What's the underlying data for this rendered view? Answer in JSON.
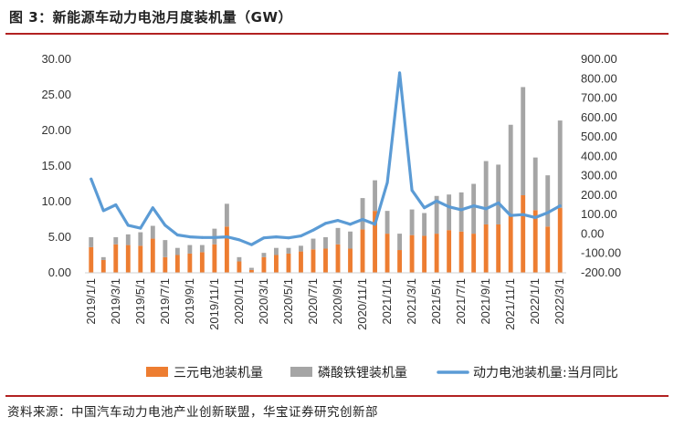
{
  "figure": {
    "title": "图 3：新能源车动力电池月度装机量（GW）",
    "source": "资料来源：中国汽车动力电池产业创新联盟，华宝证券研究创新部"
  },
  "colors": {
    "ternary": "#ed7d31",
    "lfp": "#a5a5a5",
    "yoy": "#5b9bd5",
    "accent": "#b22222"
  },
  "chart_data": {
    "type": "bar",
    "categories": [
      "2019/1/1",
      "2019/2/1",
      "2019/3/1",
      "2019/4/1",
      "2019/5/1",
      "2019/6/1",
      "2019/7/1",
      "2019/8/1",
      "2019/9/1",
      "2019/10/1",
      "2019/11/1",
      "2019/12/1",
      "2020/1/1",
      "2020/2/1",
      "2020/3/1",
      "2020/4/1",
      "2020/5/1",
      "2020/6/1",
      "2020/7/1",
      "2020/8/1",
      "2020/9/1",
      "2020/10/1",
      "2020/11/1",
      "2020/12/1",
      "2021/1/1",
      "2021/2/1",
      "2021/3/1",
      "2021/4/1",
      "2021/5/1",
      "2021/6/1",
      "2021/7/1",
      "2021/8/1",
      "2021/9/1",
      "2021/10/1",
      "2021/11/1",
      "2021/12/1",
      "2022/1/1",
      "2022/2/1",
      "2022/3/1"
    ],
    "x_tick_labels": [
      "2019/1/1",
      "2019/3/1",
      "2019/5/1",
      "2019/7/1",
      "2019/9/1",
      "2019/11/1",
      "2020/1/1",
      "2020/3/1",
      "2020/5/1",
      "2020/7/1",
      "2020/9/1",
      "2020/11/1",
      "2021/1/1",
      "2021/3/1",
      "2021/5/1",
      "2021/7/1",
      "2021/9/1",
      "2021/11/1",
      "2022/1/1",
      "2022/3/1"
    ],
    "series": [
      {
        "name": "三元电池装机量",
        "axis": "left",
        "kind": "bar",
        "values": [
          3.6,
          1.8,
          4.0,
          3.9,
          3.8,
          4.8,
          2.2,
          2.5,
          2.7,
          2.9,
          4.0,
          6.5,
          1.6,
          0.4,
          2.2,
          2.5,
          2.7,
          3.0,
          3.3,
          3.4,
          4.0,
          3.4,
          6.1,
          8.7,
          5.5,
          3.2,
          5.3,
          5.2,
          5.5,
          6.0,
          5.8,
          5.5,
          6.8,
          6.8,
          8.0,
          10.9,
          8.8,
          6.5,
          9.1
        ]
      },
      {
        "name": "磷酸铁锂装机量",
        "axis": "left",
        "kind": "bar",
        "values": [
          1.4,
          0.4,
          1.0,
          1.5,
          1.9,
          1.8,
          2.4,
          1.0,
          1.2,
          1.0,
          2.2,
          3.2,
          0.6,
          0.3,
          0.6,
          1.0,
          0.8,
          0.8,
          1.5,
          1.6,
          2.3,
          2.4,
          4.4,
          4.3,
          3.2,
          2.3,
          3.6,
          3.2,
          5.3,
          5.0,
          5.5,
          7.0,
          8.9,
          8.4,
          12.8,
          15.2,
          7.4,
          7.2,
          12.3
        ]
      },
      {
        "name": "动力电池装机量:当月同比",
        "axis": "right",
        "kind": "line",
        "values": [
          283,
          120,
          150,
          45,
          30,
          135,
          45,
          -5,
          -15,
          -18,
          -18,
          -15,
          -30,
          -55,
          -20,
          -15,
          -20,
          -10,
          20,
          55,
          70,
          50,
          75,
          50,
          265,
          830,
          225,
          135,
          170,
          140,
          125,
          145,
          130,
          160,
          95,
          100,
          85,
          110,
          145
        ]
      }
    ],
    "y_left": {
      "min": 0,
      "max": 30,
      "step": 5,
      "tick_labels": [
        "0.00",
        "5.00",
        "10.00",
        "15.00",
        "20.00",
        "25.00",
        "30.00"
      ]
    },
    "y_right": {
      "min": -200,
      "max": 900,
      "step": 100,
      "tick_labels": [
        "-200.00",
        "-100.00",
        "0.00",
        "100.00",
        "200.00",
        "300.00",
        "400.00",
        "500.00",
        "600.00",
        "700.00",
        "800.00",
        "900.00"
      ]
    },
    "stacked": true,
    "grid": false,
    "legend_position": "bottom"
  }
}
